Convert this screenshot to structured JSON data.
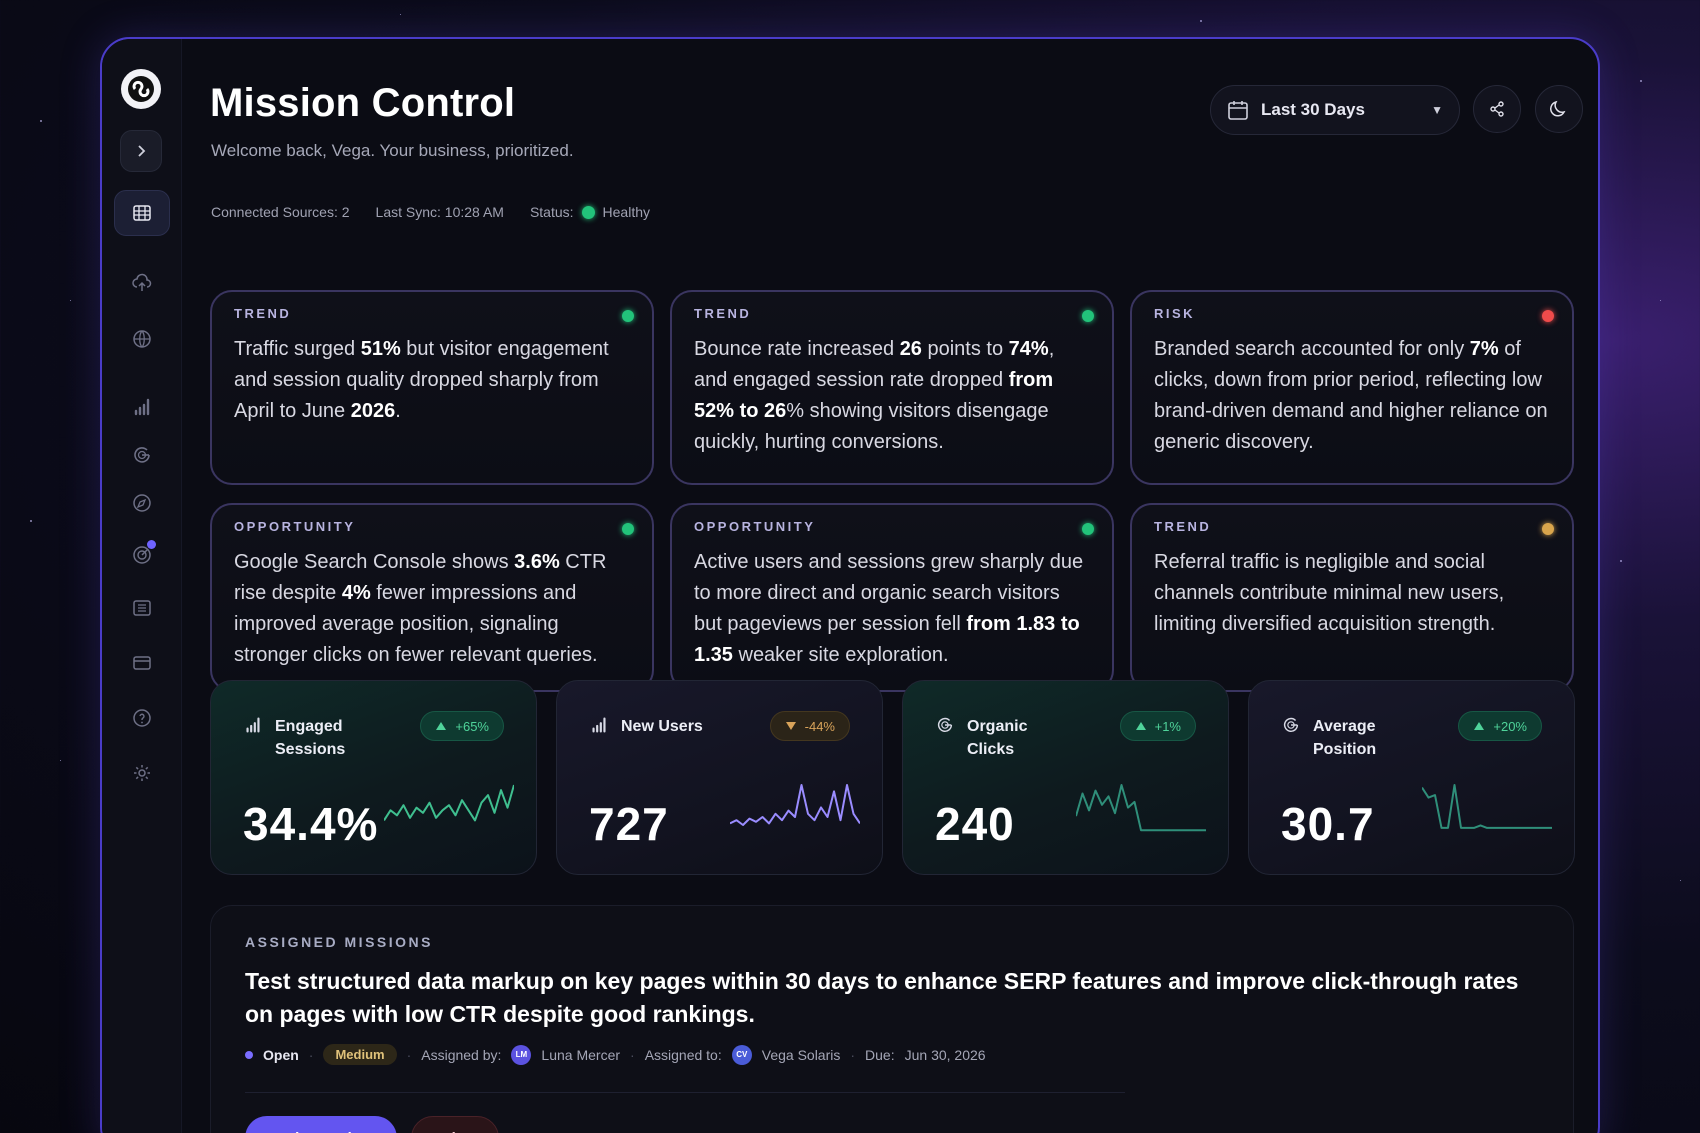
{
  "header": {
    "title": "Mission Control",
    "subtitle": "Welcome back, Vega. Your business, prioritized.",
    "connected_sources": "Connected Sources: 2",
    "last_sync": "Last Sync: 10:28 AM",
    "status_label": "Status:",
    "status_value": "Healthy",
    "date_range": "Last 30 Days"
  },
  "sidebar": {
    "items": [
      {
        "icon": "dashboard-grid-icon",
        "active": true
      },
      {
        "icon": "cloud-upload-icon"
      },
      {
        "icon": "globe-icon"
      },
      {
        "icon": "bar-chart-icon"
      },
      {
        "icon": "google-icon"
      },
      {
        "icon": "compass-icon"
      },
      {
        "icon": "target-icon",
        "notification": true
      },
      {
        "icon": "list-icon"
      },
      {
        "icon": "card-icon"
      },
      {
        "icon": "help-icon"
      },
      {
        "icon": "settings-icon"
      }
    ]
  },
  "insights": [
    {
      "label": "TREND",
      "dot": "#22c37a",
      "html": "Traffic surged <b>51%</b> but visitor engagement and session quality dropped sharply from April to June <b>2026</b>."
    },
    {
      "label": "TREND",
      "dot": "#22c37a",
      "html": "Bounce rate increased <b>26</b> points to <b>74%</b>, and engaged session rate dropped <b>from 52% to 26</b>% showing visitors disengage quickly, hurting conversions."
    },
    {
      "label": "RISK",
      "dot": "#ef4b4b",
      "html": "Branded search accounted for only <b>7%</b> of clicks, down from prior period, reflecting low brand-driven demand and higher reliance on generic discovery."
    },
    {
      "label": "OPPORTUNITY",
      "dot": "#22c37a",
      "html": "Google Search Console shows <b>3.6%</b> CTR rise despite <b>4%</b> fewer impressions and improved average position, signaling stronger clicks on fewer relevant queries."
    },
    {
      "label": "OPPORTUNITY",
      "dot": "#22c37a",
      "html": "Active users and sessions grew sharply due to more direct and organic search visitors but pageviews per session fell <b>from 1.83 to 1.35</b> weaker site exploration."
    },
    {
      "label": "TREND",
      "dot": "#d9a54c",
      "html": "Referral traffic is negligible and social channels contribute minimal new users, limiting diversified acquisition strength."
    }
  ],
  "metrics": [
    {
      "label": "Engaged Sessions",
      "value": "34.4%",
      "change": "+65%",
      "direction": "up",
      "icon": "bar-chart-icon",
      "theme": "teal",
      "spark_color": "#3fbf8f",
      "spark": [
        10,
        18,
        14,
        22,
        12,
        20,
        16,
        24,
        12,
        18,
        22,
        14,
        26,
        18,
        10,
        24,
        30,
        16,
        34,
        20,
        38
      ]
    },
    {
      "label": "New Users",
      "value": "727",
      "change": "-44%",
      "direction": "down",
      "icon": "bar-chart-icon",
      "theme": "dark",
      "spark_color": "#9a8cff",
      "spark": [
        6,
        8,
        5,
        9,
        7,
        10,
        6,
        12,
        8,
        14,
        10,
        30,
        12,
        8,
        16,
        10,
        26,
        8,
        30,
        12,
        6
      ]
    },
    {
      "label": "Organic Clicks",
      "value": "240",
      "change": "+1%",
      "direction": "up",
      "icon": "google-icon",
      "theme": "teal",
      "spark_color": "#2f8f7a",
      "spark": [
        12,
        28,
        16,
        30,
        20,
        26,
        14,
        34,
        18,
        22,
        2,
        2,
        2,
        2,
        2,
        2,
        2,
        2,
        2,
        2,
        2
      ]
    },
    {
      "label": "Average Position",
      "value": "30.7",
      "change": "+20%",
      "direction": "up",
      "icon": "google-icon",
      "theme": "dark",
      "spark_color": "#2f8f7a",
      "spark": [
        36,
        28,
        30,
        4,
        4,
        38,
        4,
        4,
        4,
        6,
        4,
        4,
        4,
        4,
        4,
        4,
        4,
        4,
        4,
        4,
        4
      ]
    }
  ],
  "missions": {
    "label": "ASSIGNED MISSIONS",
    "text": "Test structured data markup on key pages within 30 days to enhance SERP features and improve click-through rates on pages with low CTR despite good rankings.",
    "status": "Open",
    "priority": "Medium",
    "assigned_by_label": "Assigned by:",
    "assigned_by_initials": "LM",
    "assigned_by": "Luna Mercer",
    "assigned_to_label": "Assigned to:",
    "assigned_to_initials": "CV",
    "assigned_to": "Vega Solaris",
    "due_label": "Due:",
    "due": "Jun 30, 2026",
    "complete_button": "Mark complete",
    "delete_button": "Delete"
  }
}
